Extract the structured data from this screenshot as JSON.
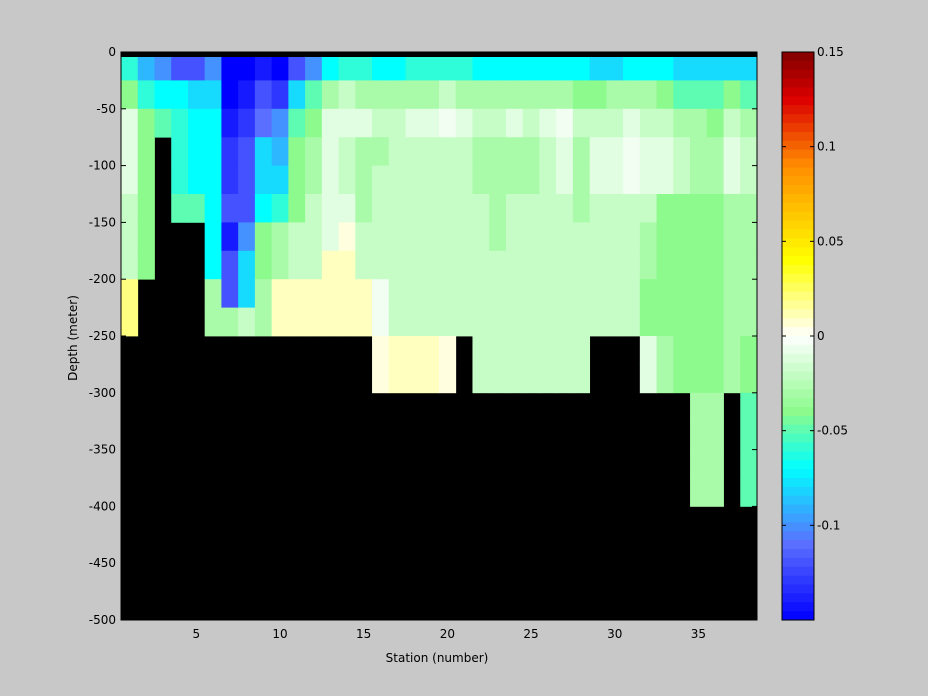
{
  "chart_data": {
    "type": "heatmap",
    "title": "",
    "xlabel": "Station (number)",
    "ylabel": "Depth (meter)",
    "xlim": [
      1,
      38
    ],
    "ylim": [
      -500,
      0
    ],
    "xticks": [
      5,
      10,
      15,
      20,
      25,
      30,
      35
    ],
    "yticks": [
      0,
      -50,
      -100,
      -150,
      -200,
      -250,
      -300,
      -350,
      -400,
      -450,
      -500
    ],
    "colorbar": {
      "range": [
        -0.15,
        0.15
      ],
      "ticks": [
        0.15,
        0.1,
        0.05,
        0,
        -0.05,
        -0.1
      ],
      "tick_labels": [
        "0.15",
        "0.1",
        "0.05",
        "0",
        "-0.05",
        "-0.1"
      ],
      "colormap": "jet-with-white-center"
    },
    "mask_color": "#000000",
    "station_columns": [
      {
        "station": 1,
        "bottom": -250,
        "values": [
          -0.06,
          -0.04,
          -0.01,
          -0.01,
          -0.01,
          -0.02,
          -0.02,
          -0.02,
          0.02,
          0.02
        ]
      },
      {
        "station": 2,
        "bottom": -200,
        "values": [
          -0.09,
          -0.06,
          -0.04,
          -0.04,
          -0.04,
          -0.04,
          -0.04,
          -0.04
        ]
      },
      {
        "station": 3,
        "bottom": -75,
        "values": [
          -0.1,
          -0.07,
          -0.05
        ]
      },
      {
        "station": 4,
        "bottom": -150,
        "values": [
          -0.12,
          -0.07,
          -0.06,
          -0.06,
          -0.06,
          -0.05
        ]
      },
      {
        "station": 5,
        "bottom": -150,
        "values": [
          -0.12,
          -0.08,
          -0.07,
          -0.07,
          -0.07,
          -0.05
        ]
      },
      {
        "station": 6,
        "bottom": -250,
        "values": [
          -0.1,
          -0.08,
          -0.07,
          -0.07,
          -0.07,
          -0.07,
          -0.07,
          -0.07,
          -0.03,
          -0.03
        ]
      },
      {
        "station": 7,
        "bottom": -250,
        "values": [
          -0.15,
          -0.15,
          -0.14,
          -0.13,
          -0.13,
          -0.12,
          -0.14,
          -0.12,
          -0.12,
          -0.03
        ]
      },
      {
        "station": 8,
        "bottom": -250,
        "values": [
          -0.15,
          -0.14,
          -0.13,
          -0.12,
          -0.12,
          -0.12,
          -0.1,
          -0.08,
          -0.08,
          -0.02
        ]
      },
      {
        "station": 9,
        "bottom": -250,
        "values": [
          -0.14,
          -0.12,
          -0.11,
          -0.08,
          -0.08,
          -0.07,
          -0.04,
          -0.04,
          -0.03,
          -0.03
        ]
      },
      {
        "station": 10,
        "bottom": -250,
        "values": [
          -0.15,
          -0.13,
          -0.1,
          -0.09,
          -0.08,
          -0.06,
          -0.03,
          -0.03,
          0.01,
          0.01
        ]
      },
      {
        "station": 11,
        "bottom": -250,
        "values": [
          -0.12,
          -0.08,
          -0.05,
          -0.04,
          -0.04,
          -0.04,
          -0.02,
          -0.02,
          0.01,
          0.01
        ]
      },
      {
        "station": 12,
        "bottom": -250,
        "values": [
          -0.1,
          -0.05,
          -0.04,
          -0.03,
          -0.03,
          -0.02,
          -0.02,
          -0.02,
          0.01,
          0.01
        ]
      },
      {
        "station": 13,
        "bottom": -250,
        "values": [
          -0.07,
          -0.03,
          -0.01,
          -0.01,
          -0.01,
          -0.01,
          -0.01,
          0.01,
          0.01,
          0.01
        ]
      },
      {
        "station": 14,
        "bottom": -250,
        "values": [
          -0.06,
          -0.02,
          -0.01,
          -0.02,
          -0.02,
          -0.01,
          0.005,
          0.01,
          0.01,
          0.01
        ]
      },
      {
        "station": 15,
        "bottom": -250,
        "values": [
          -0.06,
          -0.03,
          -0.01,
          -0.03,
          -0.03,
          -0.03,
          -0.02,
          -0.02,
          0.01,
          0.01
        ]
      },
      {
        "station": 16,
        "bottom": -300,
        "values": [
          -0.07,
          -0.03,
          -0.02,
          -0.03,
          -0.02,
          -0.02,
          -0.02,
          -0.02,
          -0.005,
          -0.005,
          0.005,
          0.005
        ]
      },
      {
        "station": 17,
        "bottom": -300,
        "values": [
          -0.07,
          -0.03,
          -0.02,
          -0.02,
          -0.02,
          -0.02,
          -0.02,
          -0.02,
          -0.02,
          -0.02,
          0.01,
          0.01
        ]
      },
      {
        "station": 18,
        "bottom": -300,
        "values": [
          -0.06,
          -0.03,
          -0.01,
          -0.02,
          -0.02,
          -0.02,
          -0.02,
          -0.02,
          -0.02,
          -0.02,
          0.01,
          0.01
        ]
      },
      {
        "station": 19,
        "bottom": -300,
        "values": [
          -0.06,
          -0.03,
          -0.01,
          -0.02,
          -0.02,
          -0.02,
          -0.02,
          -0.02,
          -0.02,
          -0.02,
          0.01,
          0.01
        ]
      },
      {
        "station": 20,
        "bottom": -300,
        "values": [
          -0.06,
          -0.02,
          -0.005,
          -0.02,
          -0.02,
          -0.02,
          -0.02,
          -0.02,
          -0.02,
          -0.02,
          0.005,
          0.005
        ]
      },
      {
        "station": 21,
        "bottom": -250,
        "values": [
          -0.06,
          -0.03,
          -0.01,
          -0.02,
          -0.02,
          -0.02,
          -0.02,
          -0.02,
          -0.02,
          -0.02
        ]
      },
      {
        "station": 22,
        "bottom": -300,
        "values": [
          -0.07,
          -0.03,
          -0.02,
          -0.03,
          -0.03,
          -0.02,
          -0.02,
          -0.02,
          -0.02,
          -0.02,
          -0.02,
          -0.02
        ]
      },
      {
        "station": 23,
        "bottom": -300,
        "values": [
          -0.07,
          -0.03,
          -0.02,
          -0.03,
          -0.03,
          -0.03,
          -0.03,
          -0.02,
          -0.02,
          -0.02,
          -0.02,
          -0.02
        ]
      },
      {
        "station": 24,
        "bottom": -300,
        "values": [
          -0.07,
          -0.03,
          -0.01,
          -0.03,
          -0.03,
          -0.02,
          -0.02,
          -0.02,
          -0.02,
          -0.02,
          -0.02,
          -0.02
        ]
      },
      {
        "station": 25,
        "bottom": -300,
        "values": [
          -0.07,
          -0.03,
          -0.02,
          -0.03,
          -0.03,
          -0.02,
          -0.02,
          -0.02,
          -0.02,
          -0.02,
          -0.02,
          -0.02
        ]
      },
      {
        "station": 26,
        "bottom": -300,
        "values": [
          -0.07,
          -0.03,
          -0.01,
          -0.02,
          -0.02,
          -0.02,
          -0.02,
          -0.02,
          -0.02,
          -0.02,
          -0.02,
          -0.02
        ]
      },
      {
        "station": 27,
        "bottom": -300,
        "values": [
          -0.07,
          -0.03,
          -0.005,
          -0.01,
          -0.01,
          -0.02,
          -0.02,
          -0.02,
          -0.02,
          -0.02,
          -0.02,
          -0.02
        ]
      },
      {
        "station": 28,
        "bottom": -300,
        "values": [
          -0.07,
          -0.04,
          -0.02,
          -0.03,
          -0.03,
          -0.03,
          -0.02,
          -0.02,
          -0.02,
          -0.02,
          -0.02,
          -0.02
        ]
      },
      {
        "station": 29,
        "bottom": -250,
        "values": [
          -0.08,
          -0.04,
          -0.02,
          -0.01,
          -0.01,
          -0.02,
          -0.02,
          -0.02,
          -0.02,
          -0.02
        ]
      },
      {
        "station": 30,
        "bottom": -250,
        "values": [
          -0.08,
          -0.03,
          -0.02,
          -0.01,
          -0.01,
          -0.02,
          -0.02,
          -0.02,
          -0.02,
          -0.02
        ]
      },
      {
        "station": 31,
        "bottom": -250,
        "values": [
          -0.07,
          -0.03,
          -0.01,
          -0.005,
          -0.005,
          -0.02,
          -0.02,
          -0.02,
          -0.02,
          -0.02
        ]
      },
      {
        "station": 32,
        "bottom": -300,
        "values": [
          -0.07,
          -0.03,
          -0.02,
          -0.01,
          -0.01,
          -0.02,
          -0.03,
          -0.03,
          -0.04,
          -0.04,
          -0.01,
          -0.01
        ]
      },
      {
        "station": 33,
        "bottom": -300,
        "values": [
          -0.07,
          -0.04,
          -0.02,
          -0.01,
          -0.01,
          -0.04,
          -0.04,
          -0.04,
          -0.04,
          -0.04,
          -0.03,
          -0.03
        ]
      },
      {
        "station": 34,
        "bottom": -300,
        "values": [
          -0.08,
          -0.05,
          -0.03,
          -0.02,
          -0.02,
          -0.04,
          -0.04,
          -0.04,
          -0.04,
          -0.04,
          -0.04,
          -0.04
        ]
      },
      {
        "station": 35,
        "bottom": -400,
        "values": [
          -0.08,
          -0.05,
          -0.03,
          -0.03,
          -0.03,
          -0.04,
          -0.04,
          -0.04,
          -0.04,
          -0.04,
          -0.04,
          -0.04,
          -0.03,
          -0.03,
          -0.03,
          -0.03
        ]
      },
      {
        "station": 36,
        "bottom": -400,
        "values": [
          -0.08,
          -0.05,
          -0.04,
          -0.03,
          -0.03,
          -0.04,
          -0.04,
          -0.04,
          -0.04,
          -0.04,
          -0.04,
          -0.04,
          -0.03,
          -0.03,
          -0.03,
          -0.03
        ]
      },
      {
        "station": 37,
        "bottom": -300,
        "values": [
          -0.08,
          -0.04,
          -0.02,
          -0.01,
          -0.01,
          -0.03,
          -0.03,
          -0.03,
          -0.03,
          -0.03,
          -0.03,
          -0.03
        ]
      },
      {
        "station": 38,
        "bottom": -400,
        "values": [
          -0.08,
          -0.05,
          -0.03,
          -0.02,
          -0.02,
          -0.03,
          -0.03,
          -0.03,
          -0.03,
          -0.03,
          -0.04,
          -0.04,
          -0.05,
          -0.05,
          -0.05,
          -0.05
        ]
      }
    ]
  }
}
